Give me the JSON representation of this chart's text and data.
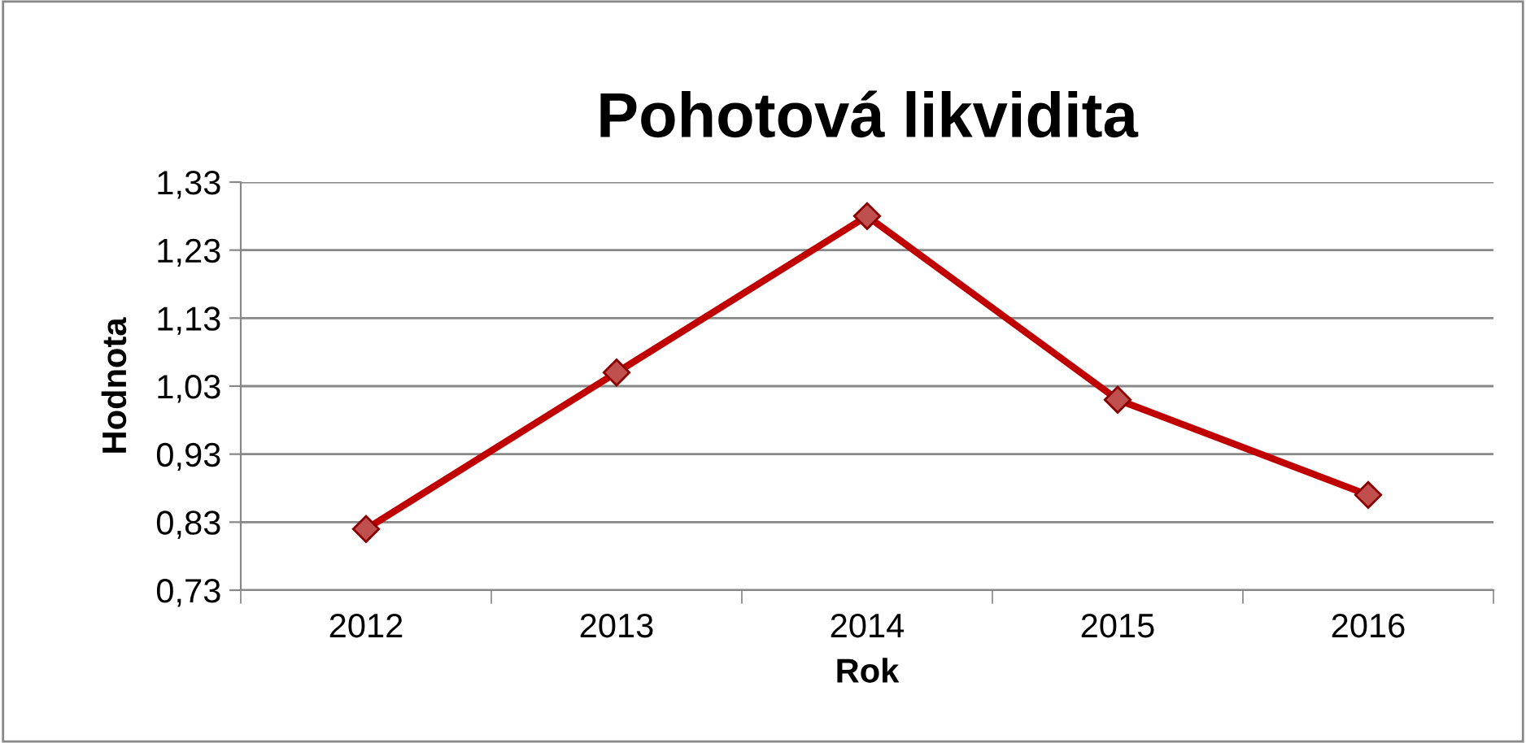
{
  "chart_data": {
    "type": "line",
    "title": "Pohotová likvidita",
    "xlabel": "Rok",
    "ylabel": "Hodnota",
    "categories": [
      "2012",
      "2013",
      "2014",
      "2015",
      "2016"
    ],
    "series": [
      {
        "color": "#c00000",
        "values": [
          0.82,
          1.05,
          1.28,
          1.01,
          0.87
        ]
      }
    ],
    "ylim": [
      0.73,
      1.33
    ],
    "yticks": [
      {
        "value": 0.73,
        "label": "0,73"
      },
      {
        "value": 0.83,
        "label": "0,83"
      },
      {
        "value": 0.93,
        "label": "0,93"
      },
      {
        "value": 1.03,
        "label": "1,03"
      },
      {
        "value": 1.13,
        "label": "1,13"
      },
      {
        "value": 1.23,
        "label": "1,23"
      },
      {
        "value": 1.33,
        "label": "1,33"
      }
    ],
    "grid": "y",
    "marker": "diamond",
    "line_style": "solid",
    "legend": false
  }
}
